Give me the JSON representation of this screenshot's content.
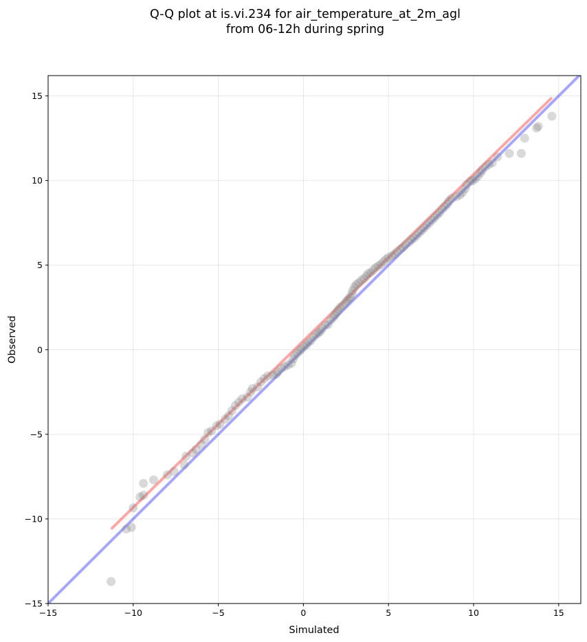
{
  "chart_data": {
    "type": "scatter",
    "title": [
      "Q-Q plot at is.vi.234 for air_temperature_at_2m_agl",
      "from 06-12h during spring"
    ],
    "xlabel": "Simulated",
    "ylabel": "Observed",
    "xlim": [
      -15,
      16.3
    ],
    "ylim": [
      -15,
      16.2
    ],
    "xticks": [
      -15,
      -10,
      -5,
      0,
      5,
      10,
      15
    ],
    "yticks": [
      -15,
      -10,
      -5,
      0,
      5,
      10,
      15
    ],
    "xtick_labels": [
      "−15",
      "−10",
      "−5",
      "0",
      "5",
      "10",
      "15"
    ],
    "ytick_labels": [
      "−15",
      "−10",
      "−5",
      "0",
      "5",
      "10",
      "15"
    ],
    "grid": true,
    "series": [
      {
        "marker": "circle",
        "color": "#808080",
        "points": [
          [
            -11.3,
            -13.7
          ],
          [
            -10.4,
            -10.6
          ],
          [
            -10.1,
            -10.5
          ],
          [
            -10.0,
            -9.35
          ],
          [
            -9.6,
            -8.7
          ],
          [
            -9.4,
            -7.9
          ],
          [
            -9.4,
            -8.6
          ],
          [
            -8.8,
            -7.7
          ],
          [
            -8.0,
            -7.4
          ],
          [
            -7.6,
            -7.2
          ],
          [
            -7.0,
            -6.8
          ],
          [
            -6.9,
            -6.3
          ],
          [
            -6.5,
            -6.1
          ],
          [
            -6.3,
            -5.9
          ],
          [
            -6.0,
            -5.6
          ],
          [
            -5.8,
            -5.3
          ],
          [
            -5.6,
            -4.9
          ],
          [
            -5.4,
            -4.8
          ],
          [
            -5.1,
            -4.5
          ],
          [
            -4.9,
            -4.4
          ],
          [
            -4.6,
            -4.1
          ],
          [
            -4.4,
            -3.9
          ],
          [
            -4.2,
            -3.6
          ],
          [
            -4.0,
            -3.3
          ],
          [
            -3.8,
            -3.1
          ],
          [
            -3.6,
            -2.9
          ],
          [
            -3.3,
            -2.8
          ],
          [
            -3.1,
            -2.5
          ],
          [
            -3.0,
            -2.3
          ],
          [
            -2.7,
            -2.2
          ],
          [
            -2.5,
            -1.9
          ],
          [
            -2.3,
            -1.7
          ],
          [
            -2.1,
            -1.55
          ],
          [
            -1.8,
            -1.5
          ],
          [
            -1.6,
            -1.45
          ],
          [
            -1.5,
            -1.3
          ],
          [
            -1.3,
            -1.1
          ],
          [
            -1.1,
            -1.0
          ],
          [
            -0.9,
            -0.9
          ],
          [
            -0.7,
            -0.8
          ],
          [
            -0.6,
            -0.55
          ],
          [
            -0.5,
            -0.35
          ],
          [
            -0.35,
            -0.2
          ],
          [
            -0.2,
            -0.05
          ],
          [
            -0.1,
            0.05
          ],
          [
            0.05,
            0.2
          ],
          [
            0.2,
            0.3
          ],
          [
            0.3,
            0.45
          ],
          [
            0.45,
            0.55
          ],
          [
            0.6,
            0.75
          ],
          [
            0.75,
            0.9
          ],
          [
            0.9,
            1.0
          ],
          [
            1.0,
            1.1
          ],
          [
            1.1,
            1.25
          ],
          [
            1.3,
            1.45
          ],
          [
            1.45,
            1.5
          ],
          [
            1.6,
            1.75
          ],
          [
            1.75,
            1.9
          ],
          [
            1.85,
            2.05
          ],
          [
            1.95,
            2.2
          ],
          [
            2.05,
            2.35
          ],
          [
            2.15,
            2.5
          ],
          [
            2.3,
            2.6
          ],
          [
            2.45,
            2.75
          ],
          [
            2.55,
            2.9
          ],
          [
            2.65,
            3.0
          ],
          [
            2.75,
            3.1
          ],
          [
            2.85,
            3.3
          ],
          [
            2.9,
            3.5
          ],
          [
            3.0,
            3.7
          ],
          [
            3.1,
            3.85
          ],
          [
            3.25,
            3.95
          ],
          [
            3.4,
            4.1
          ],
          [
            3.55,
            4.2
          ],
          [
            3.7,
            4.35
          ],
          [
            3.8,
            4.5
          ],
          [
            3.95,
            4.55
          ],
          [
            4.1,
            4.7
          ],
          [
            4.25,
            4.85
          ],
          [
            4.4,
            4.95
          ],
          [
            4.55,
            5.05
          ],
          [
            4.7,
            5.2
          ],
          [
            4.85,
            5.35
          ],
          [
            5.0,
            5.45
          ],
          [
            5.2,
            5.55
          ],
          [
            5.35,
            5.65
          ],
          [
            5.5,
            5.8
          ],
          [
            5.7,
            5.95
          ],
          [
            5.85,
            6.05
          ],
          [
            6.0,
            6.2
          ],
          [
            6.2,
            6.35
          ],
          [
            6.35,
            6.5
          ],
          [
            6.5,
            6.6
          ],
          [
            6.65,
            6.75
          ],
          [
            6.8,
            6.9
          ],
          [
            6.95,
            7.05
          ],
          [
            7.1,
            7.2
          ],
          [
            7.25,
            7.35
          ],
          [
            7.4,
            7.5
          ],
          [
            7.55,
            7.65
          ],
          [
            7.7,
            7.8
          ],
          [
            7.85,
            7.95
          ],
          [
            8.0,
            8.1
          ],
          [
            8.15,
            8.3
          ],
          [
            8.3,
            8.45
          ],
          [
            8.45,
            8.6
          ],
          [
            8.55,
            8.8
          ],
          [
            8.7,
            8.95
          ],
          [
            9.0,
            9.05
          ],
          [
            9.2,
            9.15
          ],
          [
            9.35,
            9.3
          ],
          [
            9.5,
            9.5
          ],
          [
            9.6,
            9.75
          ],
          [
            9.8,
            9.95
          ],
          [
            9.95,
            10.0
          ],
          [
            10.1,
            10.1
          ],
          [
            10.25,
            10.25
          ],
          [
            10.4,
            10.45
          ],
          [
            10.5,
            10.6
          ],
          [
            10.7,
            10.8
          ],
          [
            10.9,
            10.95
          ],
          [
            11.1,
            11.05
          ],
          [
            11.4,
            11.4
          ],
          [
            12.1,
            11.6
          ],
          [
            12.8,
            11.6
          ],
          [
            13.0,
            12.5
          ],
          [
            13.7,
            13.1
          ],
          [
            13.8,
            13.2
          ],
          [
            14.6,
            13.8
          ]
        ]
      },
      {
        "type": "line",
        "color": "#ff0000",
        "opacity": 0.35,
        "x": [
          -11.3,
          14.6
        ],
        "y": [
          -10.6,
          14.9
        ]
      },
      {
        "type": "line",
        "color": "#0000ff",
        "opacity": 0.35,
        "x": [
          -15,
          16.3
        ],
        "y": [
          -15,
          16.3
        ]
      }
    ]
  }
}
